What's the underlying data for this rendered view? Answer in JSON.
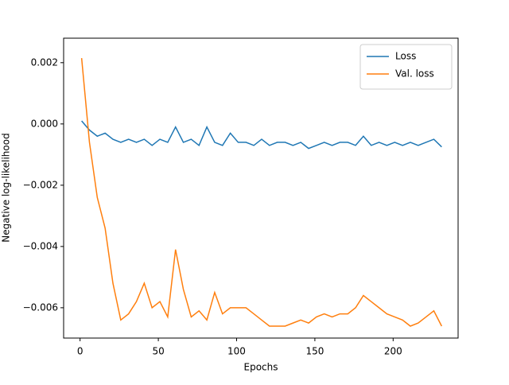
{
  "chart_data": {
    "type": "line",
    "xlabel": "Epochs",
    "ylabel": "Negative log-likelihood",
    "x": [
      1,
      6,
      11,
      16,
      21,
      26,
      31,
      36,
      41,
      46,
      51,
      56,
      61,
      66,
      71,
      76,
      81,
      86,
      91,
      96,
      101,
      106,
      111,
      116,
      121,
      126,
      131,
      136,
      141,
      146,
      151,
      156,
      161,
      166,
      171,
      176,
      181,
      186,
      191,
      196,
      201,
      206,
      211,
      216,
      221,
      226,
      231
    ],
    "series": [
      {
        "name": "Loss",
        "color": "#1f77b4",
        "values": [
          0.0001,
          -0.0002,
          -0.0004,
          -0.0003,
          -0.0005,
          -0.0006,
          -0.0005,
          -0.0006,
          -0.0005,
          -0.0007,
          -0.0005,
          -0.0006,
          -0.0001,
          -0.0006,
          -0.0005,
          -0.0007,
          -0.0001,
          -0.0006,
          -0.0007,
          -0.0003,
          -0.0006,
          -0.0006,
          -0.0007,
          -0.0005,
          -0.0007,
          -0.0006,
          -0.0006,
          -0.0007,
          -0.0006,
          -0.0008,
          -0.0007,
          -0.0006,
          -0.0007,
          -0.0006,
          -0.0006,
          -0.0007,
          -0.0004,
          -0.0007,
          -0.0006,
          -0.0007,
          -0.0006,
          -0.0007,
          -0.0006,
          -0.0007,
          -0.0006,
          -0.0005,
          -0.00075
        ]
      },
      {
        "name": "Val. loss",
        "color": "#ff7f0e",
        "values": [
          0.00215,
          -0.0006,
          -0.0024,
          -0.0034,
          -0.0052,
          -0.0064,
          -0.0062,
          -0.0058,
          -0.0052,
          -0.006,
          -0.0058,
          -0.0063,
          -0.0041,
          -0.0054,
          -0.0063,
          -0.0061,
          -0.0064,
          -0.0055,
          -0.0062,
          -0.006,
          -0.006,
          -0.006,
          -0.0062,
          -0.0064,
          -0.0066,
          -0.0066,
          -0.0066,
          -0.0065,
          -0.0064,
          -0.0065,
          -0.0063,
          -0.0062,
          -0.0063,
          -0.0062,
          -0.0062,
          -0.006,
          -0.0056,
          -0.0058,
          -0.006,
          -0.0062,
          -0.0063,
          -0.0064,
          -0.0066,
          -0.0065,
          -0.0063,
          -0.0061,
          -0.0066
        ]
      }
    ],
    "xlim": [
      -10.5,
      241.5
    ],
    "xticks": [
      0,
      50,
      100,
      150,
      200
    ],
    "ylim": [
      -0.00699,
      0.0028
    ],
    "yticks": [
      {
        "value": -0.006,
        "label": "−0.006"
      },
      {
        "value": -0.004,
        "label": "−0.004"
      },
      {
        "value": -0.002,
        "label": "−0.002"
      },
      {
        "value": 0,
        "label": "0.000"
      },
      {
        "value": 0.002,
        "label": "0.002"
      }
    ],
    "legend": "upper right",
    "grid": false
  }
}
